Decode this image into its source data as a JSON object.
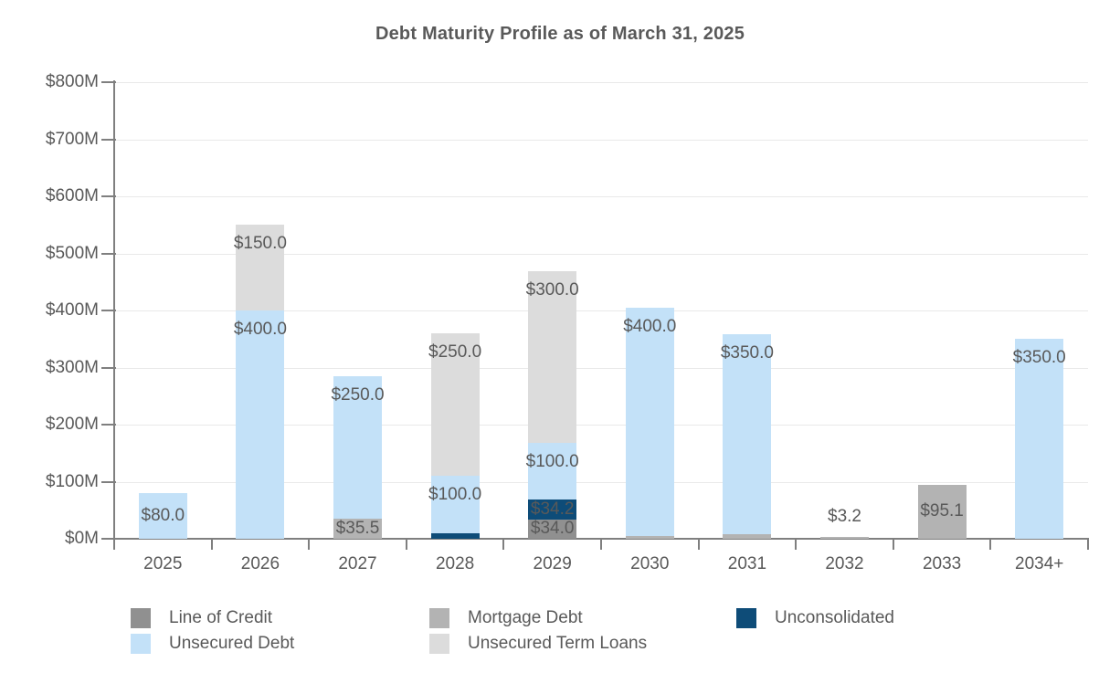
{
  "title": "Debt Maturity Profile as of March 31, 2025",
  "chart_data": {
    "type": "bar",
    "stacked": true,
    "title": "Debt Maturity Profile as of March 31, 2025",
    "categories": [
      "2025",
      "2026",
      "2027",
      "2028",
      "2029",
      "2030",
      "2031",
      "2032",
      "2033",
      "2034+"
    ],
    "series": [
      {
        "name": "Line of Credit",
        "color": "#909090",
        "values": [
          0,
          0,
          0,
          0,
          34.0,
          0,
          0,
          0,
          0,
          0
        ]
      },
      {
        "name": "Mortgage Debt",
        "color": "#b3b3b3",
        "values": [
          0,
          0,
          35.5,
          0,
          0,
          5.5,
          7.7,
          3.2,
          95.1,
          0
        ]
      },
      {
        "name": "Unconsolidated",
        "color": "#0e4c78",
        "values": [
          0,
          0,
          0,
          10.4,
          34.2,
          0,
          0,
          0,
          0,
          0
        ]
      },
      {
        "name": "Unsecured Debt",
        "color": "#c3e1f8",
        "values": [
          80.0,
          400.0,
          250.0,
          100.0,
          100.0,
          400.0,
          350.0,
          0,
          0,
          350.0
        ]
      },
      {
        "name": "Unsecured Term Loans",
        "color": "#dcdcdc",
        "values": [
          0,
          150.0,
          0,
          250.0,
          300.0,
          0,
          0,
          0,
          0,
          0
        ]
      }
    ],
    "totals": [
      80.0,
      550.0,
      285.5,
      360.4,
      468.2,
      405.5,
      357.7,
      3.2,
      95.1,
      350.0
    ],
    "xlabel": "",
    "ylabel": "",
    "ylim": [
      0,
      800
    ],
    "ytick_step": 100,
    "ytick_labels": [
      "$0M",
      "$100M",
      "$200M",
      "$300M",
      "$400M",
      "$500M",
      "$600M",
      "$700M",
      "$800M"
    ],
    "value_label_prefix": "$",
    "value_label_decimals": 1,
    "grid": true,
    "legend_position": "bottom"
  },
  "colors": {
    "text": "#595959",
    "axis": "#7f7f7f",
    "gridline": "#e9e9e9",
    "background": "#ffffff"
  }
}
